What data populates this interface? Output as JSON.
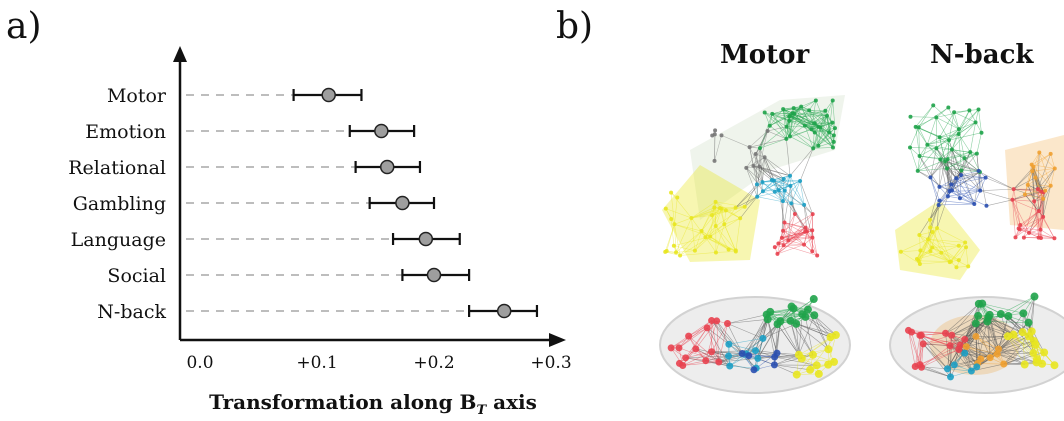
{
  "panel_a_label": "a)",
  "panel_b_label": "b)",
  "chart_data": {
    "type": "scatter",
    "orientation": "horizontal",
    "categories": [
      "Motor",
      "Emotion",
      "Relational",
      "Gambling",
      "Language",
      "Social",
      "N-back"
    ],
    "values": [
      0.11,
      0.155,
      0.16,
      0.173,
      0.193,
      0.2,
      0.26
    ],
    "error_low": [
      0.08,
      0.128,
      0.133,
      0.145,
      0.165,
      0.173,
      0.23
    ],
    "error_high": [
      0.138,
      0.183,
      0.188,
      0.2,
      0.222,
      0.23,
      0.288
    ],
    "xlim": [
      0.0,
      0.3
    ],
    "xticks": [
      0.0,
      0.1,
      0.2,
      0.3
    ],
    "xtick_labels": [
      "0.0",
      "+0.1",
      "+0.2",
      "+0.3"
    ],
    "xlabel_main": "Transformation along B",
    "xlabel_sub": "T",
    "xlabel_tail": " axis",
    "guide_lines": "dashed",
    "marker_color": "#9e9e9e",
    "grid": false
  },
  "networks": [
    {
      "title": "Motor"
    },
    {
      "title": "N-back"
    }
  ],
  "colors": {
    "green": "#1fa34a",
    "yellow": "#e8e620",
    "red": "#e8414f",
    "blue": "#2a4fb0",
    "cyan": "#1c9fc4",
    "orange": "#f0a030",
    "edge": "#555555"
  }
}
